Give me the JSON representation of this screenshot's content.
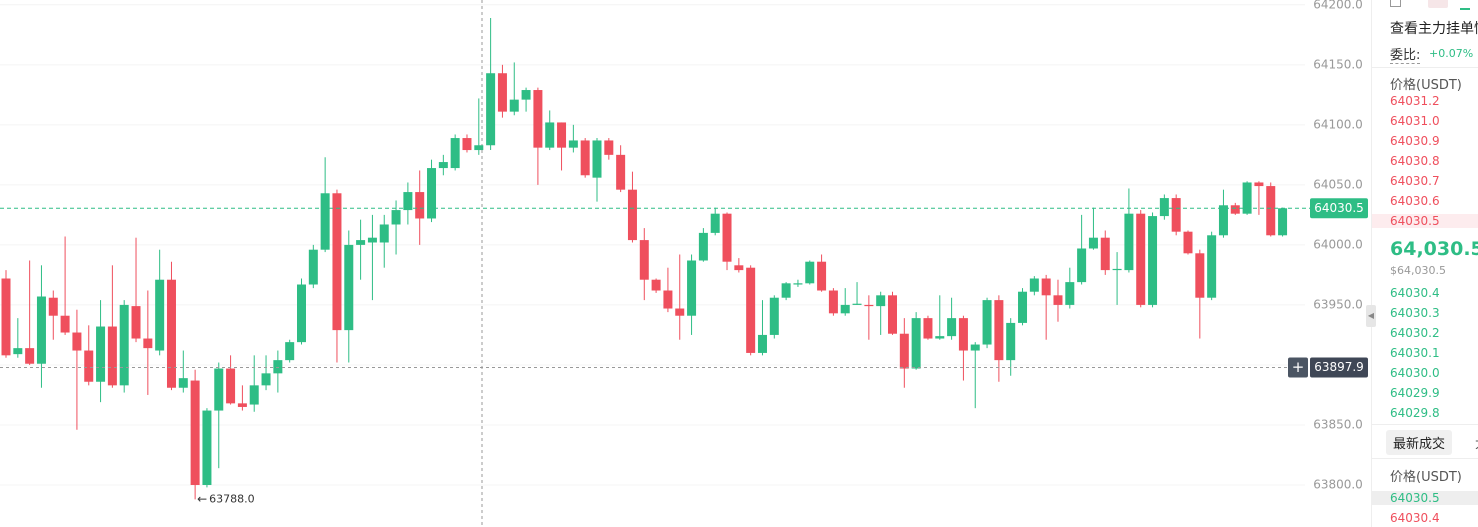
{
  "chart_data": {
    "type": "candlestick",
    "open": [
      63972,
      63909,
      63914,
      63901,
      63956,
      63941,
      63927,
      63912,
      63886,
      63932,
      63883,
      63949,
      63922,
      63912,
      63971,
      63881,
      63887,
      63800,
      63862,
      63897,
      63868,
      63867,
      63883,
      63893,
      63904,
      63919,
      63967,
      63996,
      64043,
      63929,
      64000,
      64002,
      64002,
      64017,
      64029,
      64044,
      64022,
      64064,
      64064,
      64089,
      64079,
      64083,
      64143,
      64111,
      64121,
      64129,
      64081,
      64102,
      64081,
      64087,
      64056,
      64087,
      64075,
      64046,
      64004,
      63971,
      63962,
      63947,
      63941,
      63987,
      64010,
      64026,
      63983,
      63981,
      63910,
      63925,
      63956,
      63967,
      63968,
      63986,
      63962,
      63943,
      63950,
      63950,
      63949,
      63958,
      63926,
      63897,
      63939,
      63922,
      63924,
      63939,
      63912,
      63917,
      63954,
      63904,
      63935,
      63961,
      63972,
      63958,
      63950,
      63969,
      63997,
      64006,
      63979,
      63979,
      64026,
      63950,
      64024,
      64039,
      64011,
      63993,
      63956,
      64008,
      64033,
      64026,
      64052,
      64049,
      64008
    ],
    "high": [
      63979,
      63939,
      63987,
      63983,
      63962,
      64007,
      63946,
      63933,
      63954,
      63983,
      63954,
      64006,
      63962,
      63996,
      63986,
      63912,
      63896,
      63864,
      63902,
      63908,
      63883,
      63908,
      63908,
      63912,
      63921,
      63972,
      64000,
      64073,
      64046,
      64012,
      64021,
      64025,
      64025,
      64037,
      64052,
      64062,
      64071,
      64075,
      64092,
      64092,
      64122,
      64189,
      64150,
      64152,
      64131,
      64131,
      64112,
      64102,
      64100,
      64089,
      64089,
      64089,
      64083,
      64061,
      64014,
      63972,
      63981,
      63992,
      63992,
      64014,
      64031,
      64027,
      63989,
      63983,
      63954,
      63958,
      63969,
      63971,
      63987,
      63992,
      63964,
      63964,
      63969,
      63958,
      63961,
      63961,
      63939,
      63944,
      63941,
      63958,
      63956,
      63941,
      63919,
      63956,
      63958,
      63939,
      63964,
      63974,
      63975,
      63971,
      63981,
      64025,
      64031,
      64012,
      63994,
      64047,
      64029,
      64027,
      64042,
      64042,
      64012,
      63996,
      64011,
      64046,
      64035,
      64053,
      64053,
      64052,
      64031
    ],
    "low": [
      63906,
      63906,
      63900,
      63881,
      63921,
      63925,
      63846,
      63883,
      63869,
      63881,
      63877,
      63919,
      63875,
      63908,
      63879,
      63877,
      63788,
      63798,
      63814,
      63867,
      63862,
      63861,
      63879,
      63877,
      63902,
      63917,
      63964,
      63994,
      63902,
      63902,
      63971,
      63954,
      63981,
      63992,
      64017,
      64000,
      64019,
      64058,
      64062,
      64077,
      64075,
      64079,
      64106,
      64108,
      64111,
      64050,
      64079,
      64062,
      64077,
      64056,
      64036,
      64071,
      64044,
      64002,
      63954,
      63960,
      63944,
      63921,
      63925,
      63986,
      64008,
      63979,
      63977,
      63908,
      63908,
      63922,
      63954,
      63965,
      63967,
      63961,
      63941,
      63941,
      63950,
      63921,
      63925,
      63925,
      63881,
      63896,
      63921,
      63921,
      63921,
      63887,
      63864,
      63914,
      63886,
      63891,
      63933,
      63958,
      63921,
      63936,
      63947,
      63967,
      63996,
      63975,
      63950,
      63977,
      63948,
      63948,
      64021,
      64008,
      63992,
      63922,
      63954,
      64006,
      64025,
      64025,
      64025,
      64007,
      64007
    ],
    "close": [
      63908,
      63914,
      63901,
      63957,
      63941,
      63927,
      63912,
      63886,
      63932,
      63883,
      63950,
      63922,
      63914,
      63971,
      63881,
      63889,
      63800,
      63862,
      63897,
      63868,
      63865,
      63883,
      63893,
      63904,
      63919,
      63967,
      63996,
      64043,
      63929,
      64000,
      64004,
      64006,
      64017,
      64029,
      64044,
      64022,
      64064,
      64069,
      64089,
      64079,
      64083,
      64143,
      64111,
      64121,
      64129,
      64081,
      64102,
      64081,
      64087,
      64058,
      64087,
      64075,
      64046,
      64004,
      63971,
      63962,
      63947,
      63941,
      63987,
      64010,
      64026,
      63986,
      63979,
      63910,
      63925,
      63956,
      63968,
      63968,
      63986,
      63962,
      63943,
      63950,
      63951,
      63949,
      63958,
      63926,
      63897,
      63939,
      63922,
      63924,
      63939,
      63912,
      63917,
      63954,
      63904,
      63935,
      63961,
      63972,
      63958,
      63950,
      63969,
      63997,
      64006,
      63979,
      63980,
      64026,
      63950,
      64024,
      64039,
      64011,
      63993,
      63956,
      64008,
      64033,
      64026,
      64052,
      64049,
      64008,
      64030.5
    ],
    "up_color": "#2ebd85",
    "down_color": "#ef4f5d",
    "ylim": [
      63765,
      64204
    ],
    "yticks": [
      {
        "value": 63800,
        "label": "63800.0"
      },
      {
        "value": 63850,
        "label": "63850.0"
      },
      {
        "value": 63900,
        "label": "63900.0"
      },
      {
        "value": 63950,
        "label": "63950.0"
      },
      {
        "value": 64000,
        "label": "64000.0"
      },
      {
        "value": 64050,
        "label": "64050.0"
      },
      {
        "value": 64100,
        "label": "64100.0"
      },
      {
        "value": 64150,
        "label": "64150.0"
      },
      {
        "value": 64200,
        "label": "64200.0"
      }
    ],
    "grid": true,
    "last_price": {
      "value": 64030.5,
      "label": "64030.5"
    },
    "crosshair_price": {
      "value": 63897.9,
      "label": "63897.9"
    },
    "low_marker": {
      "value": 63788,
      "label": "63788.0"
    }
  },
  "order_book": {
    "title": "查看主力挂单情",
    "ratio_label": "委比:",
    "ratio_value": "+0.07%",
    "price_header": "价格(USDT)",
    "asks": [
      "64031.2",
      "64031.0",
      "64030.9",
      "64030.8",
      "64030.7",
      "64030.6",
      "64030.5"
    ],
    "last_price": "64,030.5",
    "last_price_usd": "$64,030.5",
    "bids": [
      "64030.4",
      "64030.3",
      "64030.2",
      "64030.1",
      "64030.0",
      "64029.9",
      "64029.8"
    ]
  },
  "trades": {
    "tab": "最新成交",
    "next_tab": "大",
    "price_header": "价格(USDT)",
    "prices": [
      "64030.5",
      "64030.4"
    ]
  }
}
